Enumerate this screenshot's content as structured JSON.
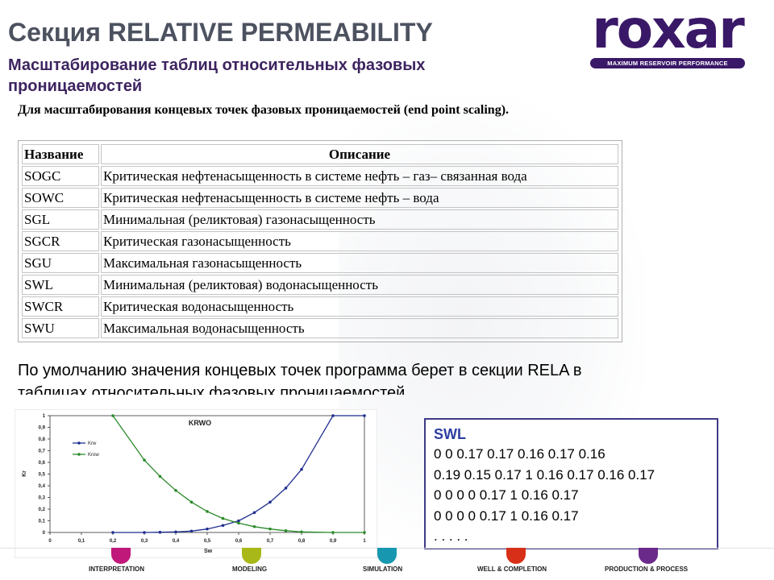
{
  "header": {
    "title": "Секция RELATIVE PERMEABILITY",
    "subtitle": "Масштабирование таблиц относительных фазовых проницаемостей"
  },
  "logo": {
    "word": "roxar",
    "tagline": "MAXIMUM RESERVOIR PERFORMANCE",
    "color": "#3a1868"
  },
  "intro": "Для масштабирования концевых точек фазовых проницаемостей (end point scaling).",
  "table": {
    "headers": [
      "Название",
      "Описание"
    ],
    "rows": [
      [
        "SOGC",
        "Критическая нефтенасыщенность в системе нефть – газ– связанная вода"
      ],
      [
        "SOWC",
        "Критическая нефтенасыщенность в системе нефть – вода"
      ],
      [
        "SGL",
        "Минимальная (реликтовая) газонасыщенность"
      ],
      [
        "SGCR",
        "Критическая газонасыщенность"
      ],
      [
        "SGU",
        "Максимальная газонасыщенность"
      ],
      [
        "SWL",
        "Минимальная (реликтовая) водонасыщенность"
      ],
      [
        "SWCR",
        "Критическая водонасыщенность"
      ],
      [
        "SWU",
        "Максимальная водонасыщенность"
      ]
    ]
  },
  "paragraph": {
    "line1": "По умолчанию значения концевых точек программа берет в секции RELA в",
    "line2": "таблицах относительных фазовых проницаемостей."
  },
  "chart_data": {
    "type": "line",
    "title": "KRWO",
    "xlabel": "Sw",
    "ylabel": "Kr",
    "xlim": [
      0,
      1
    ],
    "ylim": [
      0,
      1
    ],
    "x_ticks": [
      "0",
      "0,1",
      "0,2",
      "0,3",
      "0,4",
      "0,5",
      "0,6",
      "0,7",
      "0,8",
      "0,9",
      "1"
    ],
    "y_ticks": [
      "0",
      "0,1",
      "0,2",
      "0,3",
      "0,4",
      "0,5",
      "0,6",
      "0,7",
      "0,8",
      "0,9",
      "1"
    ],
    "legend_position": "top-left",
    "grid": false,
    "series": [
      {
        "name": "Krw",
        "color": "#1f2f8f",
        "x": [
          0.2,
          0.3,
          0.35,
          0.4,
          0.45,
          0.5,
          0.55,
          0.6,
          0.65,
          0.7,
          0.75,
          0.8,
          0.9,
          1.0
        ],
        "y": [
          0,
          0,
          0.002,
          0.005,
          0.012,
          0.03,
          0.06,
          0.1,
          0.17,
          0.26,
          0.38,
          0.54,
          1.0,
          1.0
        ]
      },
      {
        "name": "Krow",
        "color": "#2a8a2a",
        "x": [
          0.2,
          0.3,
          0.35,
          0.4,
          0.45,
          0.5,
          0.55,
          0.6,
          0.65,
          0.7,
          0.75,
          0.8,
          0.9,
          1.0
        ],
        "y": [
          1.0,
          0.62,
          0.48,
          0.36,
          0.26,
          0.18,
          0.12,
          0.08,
          0.05,
          0.03,
          0.015,
          0.005,
          0,
          0
        ]
      }
    ]
  },
  "swl_box": {
    "title": "SWL",
    "lines": [
      "0 0 0.17 0.17 0.16 0.17 0.16",
      "0.19 0.15 0.17 1 0.16 0.17 0.16 0.17",
      "0 0 0 0 0.17 1 0.16 0.17",
      "0 0 0 0 0.17 1 0.16 0.17",
      ". . . . ."
    ]
  },
  "footer": {
    "items": [
      {
        "label": "INTERPRETATION",
        "color": "#c0187a"
      },
      {
        "label": "MODELING",
        "color": "#a8b818"
      },
      {
        "label": "SIMULATION",
        "color": "#1898b0"
      },
      {
        "label": "WELL & COMPLETION",
        "color": "#d83018"
      },
      {
        "label": "PRODUCTION & PROCESS",
        "color": "#6a2a8a"
      }
    ]
  }
}
